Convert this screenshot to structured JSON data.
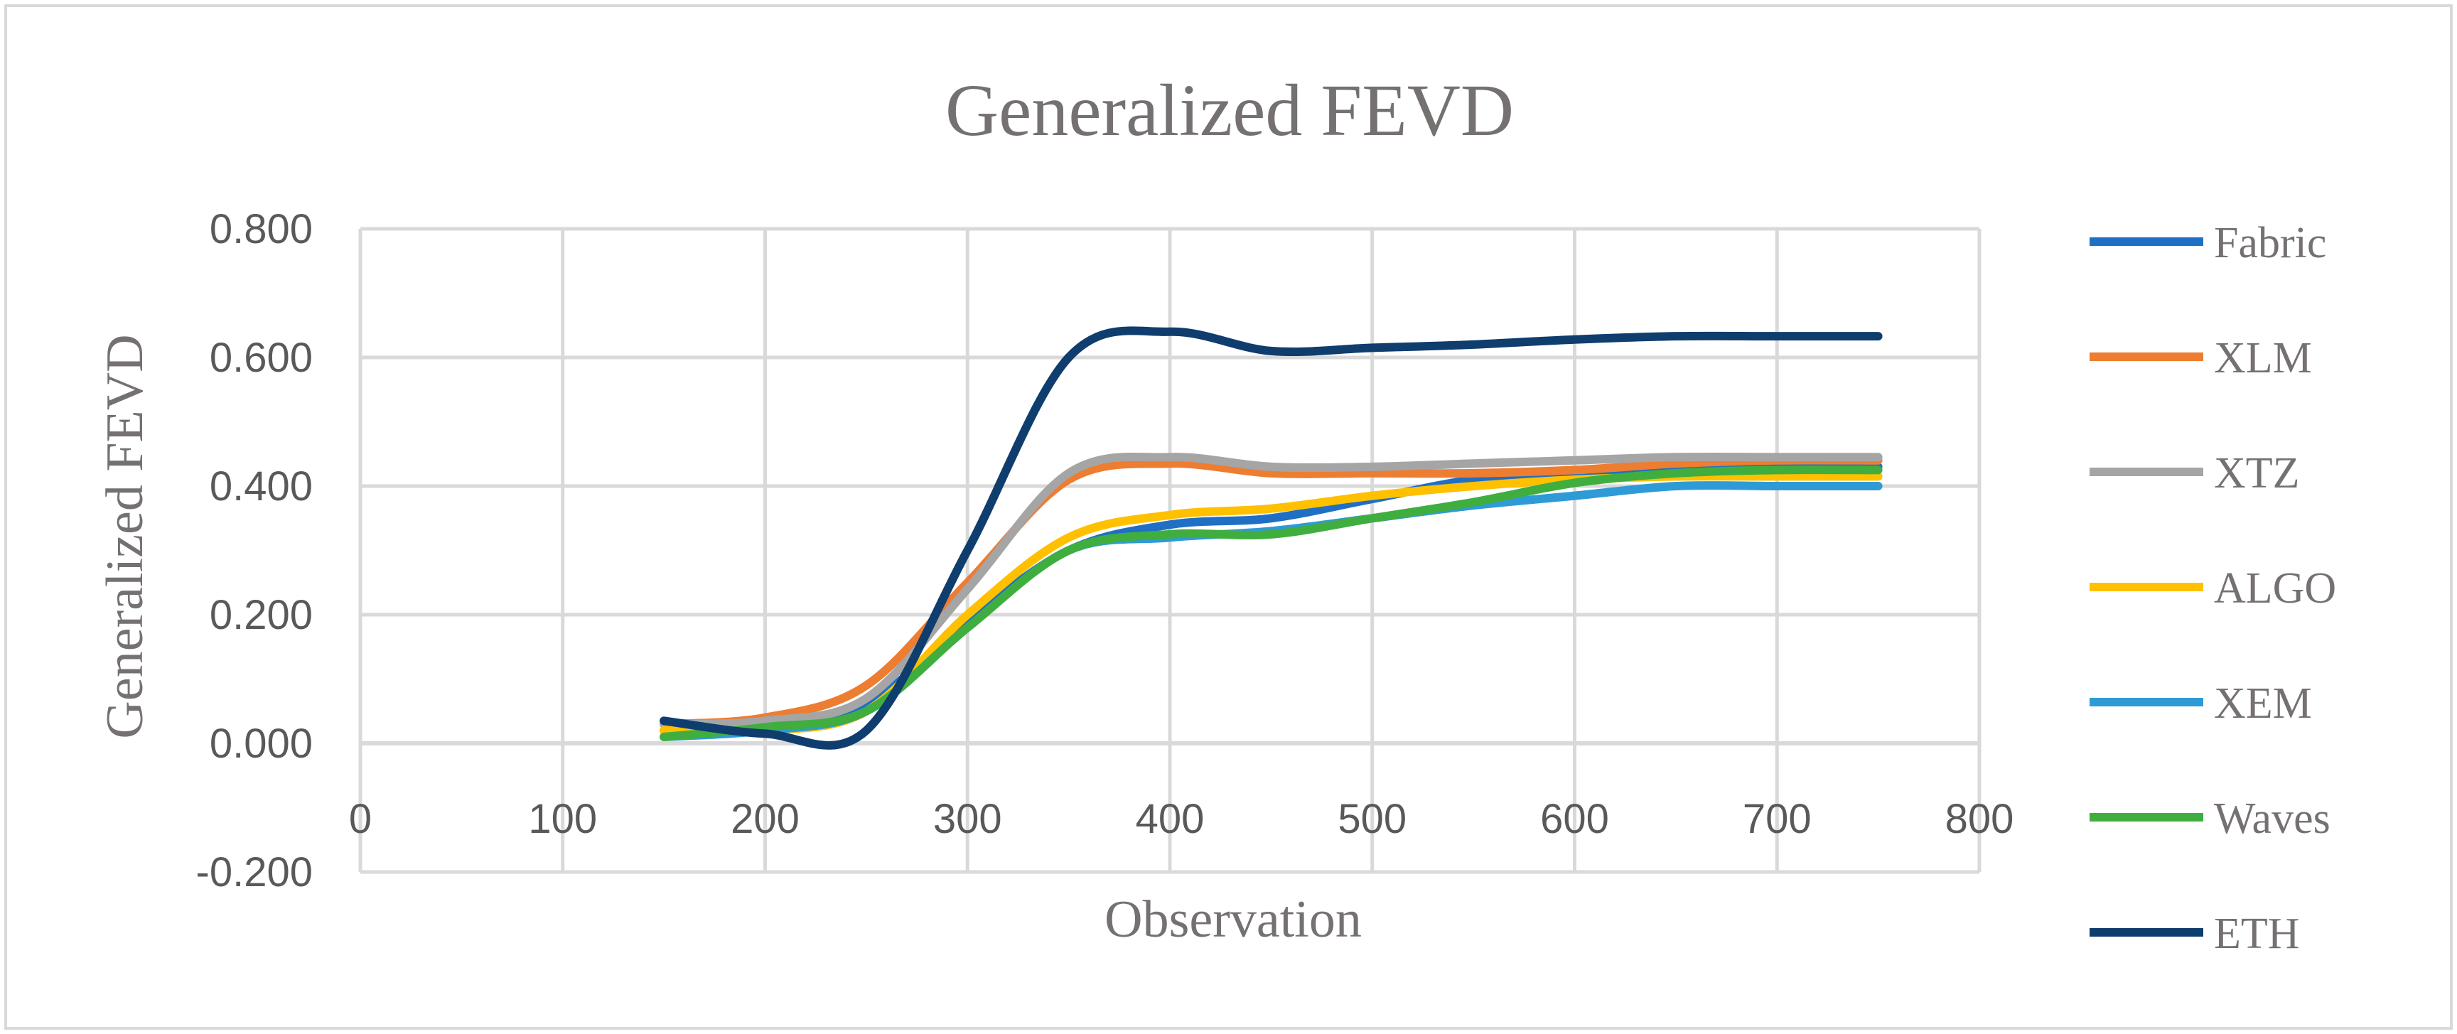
{
  "chart_data": {
    "type": "line",
    "title": "Generalized FEVD",
    "xlabel": "Observation",
    "ylabel": "Generalized FEVD",
    "xlim": [
      0,
      800
    ],
    "ylim": [
      -0.2,
      0.8
    ],
    "x_ticks": [
      0,
      100,
      200,
      300,
      400,
      500,
      600,
      700,
      800
    ],
    "x_tick_labels": [
      "0",
      "100",
      "200",
      "300",
      "400",
      "500",
      "600",
      "700",
      "800"
    ],
    "y_ticks": [
      -0.2,
      0.0,
      0.2,
      0.4,
      0.6,
      0.8
    ],
    "y_tick_labels": [
      "-0.200",
      "0.000",
      "0.200",
      "0.400",
      "0.600",
      "0.800"
    ],
    "grid": true,
    "legend_position": "right",
    "x": [
      150,
      200,
      250,
      300,
      350,
      400,
      450,
      500,
      550,
      600,
      650,
      700,
      750
    ],
    "series": [
      {
        "name": "Fabric",
        "color": "#1f6fc5",
        "values": [
          0.02,
          0.025,
          0.06,
          0.19,
          0.3,
          0.34,
          0.35,
          0.38,
          0.41,
          0.42,
          0.43,
          0.43,
          0.43
        ]
      },
      {
        "name": "XLM",
        "color": "#ed7d31",
        "values": [
          0.03,
          0.04,
          0.09,
          0.25,
          0.41,
          0.435,
          0.42,
          0.42,
          0.42,
          0.425,
          0.435,
          0.44,
          0.44
        ]
      },
      {
        "name": "XTZ",
        "color": "#a5a5a5",
        "values": [
          0.03,
          0.035,
          0.07,
          0.24,
          0.42,
          0.445,
          0.43,
          0.43,
          0.435,
          0.44,
          0.445,
          0.445,
          0.445
        ]
      },
      {
        "name": "ALGO",
        "color": "#ffc000",
        "values": [
          0.02,
          0.02,
          0.05,
          0.2,
          0.32,
          0.355,
          0.365,
          0.385,
          0.4,
          0.41,
          0.415,
          0.415,
          0.415
        ]
      },
      {
        "name": "XEM",
        "color": "#2e9bd6",
        "values": [
          0.01,
          0.02,
          0.05,
          0.18,
          0.3,
          0.32,
          0.33,
          0.35,
          0.37,
          0.385,
          0.4,
          0.4,
          0.4
        ]
      },
      {
        "name": "Waves",
        "color": "#3fae3f",
        "values": [
          0.01,
          0.025,
          0.05,
          0.18,
          0.3,
          0.325,
          0.325,
          0.35,
          0.375,
          0.405,
          0.42,
          0.425,
          0.425
        ]
      },
      {
        "name": "ETH",
        "color": "#0f3d6e",
        "values": [
          0.035,
          0.015,
          0.02,
          0.3,
          0.6,
          0.64,
          0.61,
          0.615,
          0.62,
          0.628,
          0.633,
          0.633,
          0.633
        ]
      }
    ]
  }
}
